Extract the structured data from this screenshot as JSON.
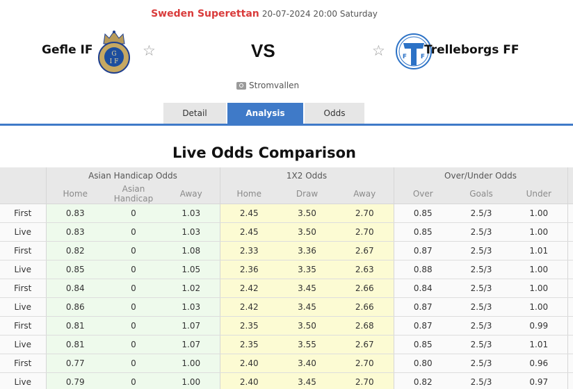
{
  "match": {
    "league": "Sweden Superettan",
    "datetime": "20-07-2024 20:00 Saturday",
    "home_team": "Gefle IF",
    "away_team": "Trelleborgs FF",
    "vs_label": "VS",
    "venue": "Stromvallen",
    "home_logo": "gefle-if-crest",
    "away_logo": "trelleborgs-ff-crest",
    "favorite_icon": "☆"
  },
  "tabs": [
    {
      "label": "Detail",
      "active": false
    },
    {
      "label": "Analysis",
      "active": true
    },
    {
      "label": "Odds",
      "active": false
    }
  ],
  "section_title": "Live Odds Comparison",
  "colors": {
    "accent": "#3f7ac8",
    "league": "#d93b3b",
    "asian_bg": "#eefaec",
    "x12_bg": "#fcfbd3"
  },
  "table": {
    "groups": [
      "Asian Handicap Odds",
      "1X2 Odds",
      "Over/Under Odds"
    ],
    "subheaders": [
      "Home",
      "Asian Handicap",
      "Away",
      "Home",
      "Draw",
      "Away",
      "Over",
      "Goals",
      "Under"
    ],
    "rows": [
      {
        "type": "First",
        "ah": [
          "0.83",
          "0",
          "1.03"
        ],
        "x12": [
          "2.45",
          "3.50",
          "2.70"
        ],
        "ou": [
          "0.85",
          "2.5/3",
          "1.00"
        ]
      },
      {
        "type": "Live",
        "ah": [
          "0.83",
          "0",
          "1.03"
        ],
        "x12": [
          "2.45",
          "3.50",
          "2.70"
        ],
        "ou": [
          "0.85",
          "2.5/3",
          "1.00"
        ]
      },
      {
        "type": "First",
        "ah": [
          "0.82",
          "0",
          "1.08"
        ],
        "x12": [
          "2.33",
          "3.36",
          "2.67"
        ],
        "ou": [
          "0.87",
          "2.5/3",
          "1.01"
        ]
      },
      {
        "type": "Live",
        "ah": [
          "0.85",
          "0",
          "1.05"
        ],
        "x12": [
          "2.36",
          "3.35",
          "2.63"
        ],
        "ou": [
          "0.88",
          "2.5/3",
          "1.00"
        ]
      },
      {
        "type": "First",
        "ah": [
          "0.84",
          "0",
          "1.02"
        ],
        "x12": [
          "2.42",
          "3.45",
          "2.66"
        ],
        "ou": [
          "0.84",
          "2.5/3",
          "1.00"
        ]
      },
      {
        "type": "Live",
        "ah": [
          "0.86",
          "0",
          "1.03"
        ],
        "x12": [
          "2.42",
          "3.45",
          "2.66"
        ],
        "ou": [
          "0.87",
          "2.5/3",
          "1.00"
        ]
      },
      {
        "type": "First",
        "ah": [
          "0.81",
          "0",
          "1.07"
        ],
        "x12": [
          "2.35",
          "3.50",
          "2.68"
        ],
        "ou": [
          "0.87",
          "2.5/3",
          "0.99"
        ]
      },
      {
        "type": "Live",
        "ah": [
          "0.81",
          "0",
          "1.07"
        ],
        "x12": [
          "2.35",
          "3.55",
          "2.67"
        ],
        "ou": [
          "0.85",
          "2.5/3",
          "1.01"
        ]
      },
      {
        "type": "First",
        "ah": [
          "0.77",
          "0",
          "1.00"
        ],
        "x12": [
          "2.40",
          "3.40",
          "2.70"
        ],
        "ou": [
          "0.80",
          "2.5/3",
          "0.96"
        ]
      },
      {
        "type": "Live",
        "ah": [
          "0.79",
          "0",
          "1.00"
        ],
        "x12": [
          "2.40",
          "3.45",
          "2.70"
        ],
        "ou": [
          "0.82",
          "2.5/3",
          "0.97"
        ]
      }
    ]
  }
}
